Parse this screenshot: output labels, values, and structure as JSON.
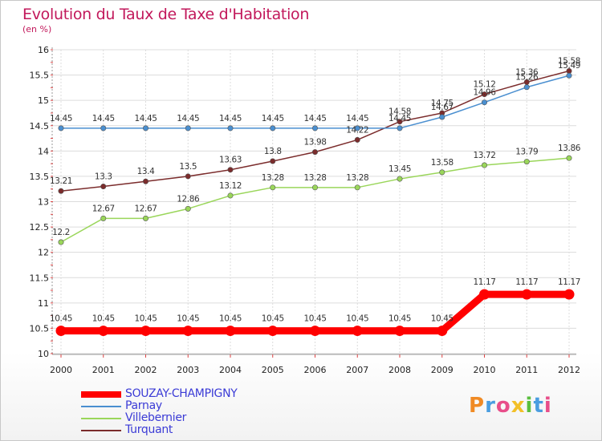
{
  "title": "Evolution du Taux de Taxe d'Habitation",
  "unit_label": "(en %)",
  "logo": "Proxiti",
  "colors": {
    "title": "#c2185b",
    "legend_text": "#3b3bd6",
    "grid": "#d9d9d9"
  },
  "chart_data": {
    "type": "line",
    "title": "Evolution du Taux de Taxe d'Habitation",
    "ylabel": "(en %)",
    "xlabel": "",
    "ylim": [
      10,
      16
    ],
    "yticks": [
      "10",
      "10.5",
      "11",
      "11.5",
      "12",
      "12.5",
      "13",
      "13.5",
      "14",
      "14.5",
      "15",
      "15.5",
      "16"
    ],
    "x": [
      "2000",
      "2001",
      "2002",
      "2003",
      "2004",
      "2005",
      "2006",
      "2007",
      "2008",
      "2009",
      "2010",
      "2011",
      "2012"
    ],
    "grid": true,
    "legend_position": "bottom-left",
    "series": [
      {
        "name": "SOUZAY-CHAMPIGNY",
        "color": "#ff0000",
        "values": [
          10.45,
          10.45,
          10.45,
          10.45,
          10.45,
          10.45,
          10.45,
          10.45,
          10.45,
          10.45,
          11.17,
          11.17,
          11.17
        ],
        "labels": [
          "10.45",
          "10.45",
          "10.45",
          "10.45",
          "10.45",
          "10.45",
          "10.45",
          "10.45",
          "10.45",
          "10.45",
          "11.17",
          "11.17",
          "11.17"
        ]
      },
      {
        "name": "Parnay",
        "color": "#4a8fd0",
        "values": [
          14.45,
          14.45,
          14.45,
          14.45,
          14.45,
          14.45,
          14.45,
          14.45,
          14.45,
          14.67,
          14.96,
          15.26,
          15.49
        ],
        "labels": [
          "14.45",
          "14.45",
          "14.45",
          "14.45",
          "14.45",
          "14.45",
          "14.45",
          "14.45",
          "14.45",
          "14.67",
          "14.96",
          "15.26",
          "15.49"
        ]
      },
      {
        "name": "Villebernier",
        "color": "#9ad65a",
        "values": [
          12.2,
          12.67,
          12.67,
          12.86,
          13.12,
          13.28,
          13.28,
          13.28,
          13.45,
          13.58,
          13.72,
          13.79,
          13.86
        ],
        "labels": [
          "12.2",
          "12.67",
          "12.67",
          "12.86",
          "13.12",
          "13.28",
          "13.28",
          "13.28",
          "13.45",
          "13.58",
          "13.72",
          "13.79",
          "13.86"
        ]
      },
      {
        "name": "Turquant",
        "color": "#7b2c2c",
        "values": [
          13.21,
          13.3,
          13.4,
          13.5,
          13.63,
          13.8,
          13.98,
          14.22,
          14.58,
          14.75,
          15.12,
          15.36,
          15.58
        ],
        "labels": [
          "13.21",
          "13.3",
          "13.4",
          "13.5",
          "13.63",
          "13.8",
          "13.98",
          "14.22",
          "14.58",
          "14.75",
          "15.12",
          "15.36",
          "15.58"
        ]
      }
    ]
  }
}
